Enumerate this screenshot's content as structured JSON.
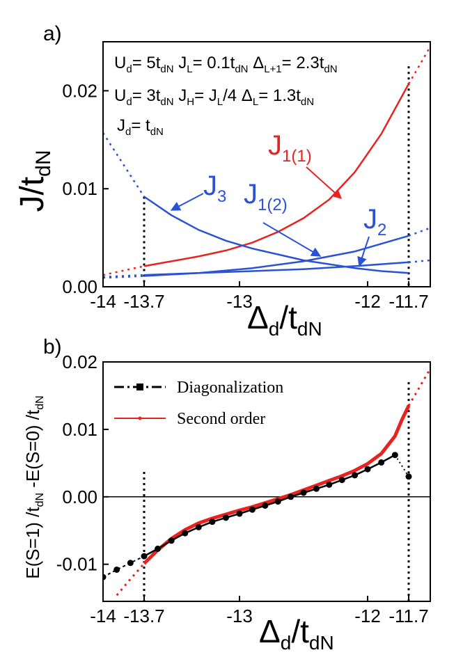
{
  "chart_data": [
    {
      "panel": "a)",
      "type": "line",
      "xlim": [
        -14,
        -11.6
      ],
      "ylim": [
        0.0,
        0.025
      ],
      "xticks": [
        "-14",
        "-13.7",
        "-13",
        "-12",
        "-11.7"
      ],
      "xtick_values": [
        -14,
        -13.7,
        -13,
        -12,
        -11.7
      ],
      "yticks": [
        "0.00",
        "0.01",
        "0.02"
      ],
      "ytick_values": [
        0.0,
        0.01,
        0.02
      ],
      "xlabel": {
        "main": "Δ",
        "sub1": "d",
        "slash": "/t",
        "sub2": "dN"
      },
      "ylabel": {
        "main": "J/t",
        "sub": "dN"
      },
      "annotation_lines": [
        [
          "U",
          "d",
          "= 5t",
          "dN",
          "  J",
          "L",
          "= 0.1t",
          "dN",
          "  Δ",
          "L+1",
          "= 2.3t",
          "dN"
        ],
        [
          "U",
          "d",
          "= 3t",
          "dN",
          "  J",
          "H",
          "= J",
          "L",
          "/4   Δ",
          "L",
          "= 1.3t",
          "dN"
        ],
        [
          "J",
          "d",
          "= t",
          "dN"
        ]
      ],
      "vlines": [
        -13.7,
        -11.7
      ],
      "labels": {
        "J1_1": {
          "main": "J",
          "sub": "1(1)",
          "color": "#e8231f"
        },
        "J1_2": {
          "main": "J",
          "sub": "1(2)",
          "color": "#2a52d6"
        },
        "J3": {
          "main": "J",
          "sub": "3",
          "color": "#2a52d6"
        },
        "J2": {
          "main": "J",
          "sub": "2",
          "color": "#2a52d6"
        }
      },
      "series": [
        {
          "key": "J1_1",
          "color": "#e8231f",
          "valid_range": [
            -13.7,
            -11.7
          ],
          "x": [
            -14.0,
            -13.7,
            -13.5,
            -13.3,
            -13.1,
            -12.9,
            -12.7,
            -12.5,
            -12.3,
            -12.1,
            -11.9,
            -11.7,
            -11.6
          ],
          "y": [
            0.0012,
            0.0021,
            0.0026,
            0.0031,
            0.0037,
            0.0045,
            0.0056,
            0.007,
            0.0089,
            0.0117,
            0.0156,
            0.0207,
            0.0245
          ]
        },
        {
          "key": "J3",
          "color": "#2a52d6",
          "valid_range": [
            -13.7,
            -11.7
          ],
          "x": [
            -14.0,
            -13.7,
            -13.5,
            -13.3,
            -13.1,
            -12.9,
            -12.7,
            -12.5,
            -12.3,
            -12.1,
            -11.9,
            -11.7
          ],
          "y": [
            0.0157,
            0.0092,
            0.0073,
            0.0058,
            0.0047,
            0.0039,
            0.0033,
            0.0027,
            0.0023,
            0.0019,
            0.0016,
            0.0014
          ]
        },
        {
          "key": "J1_2",
          "color": "#2a52d6",
          "valid_range": [
            -13.7,
            -11.7
          ],
          "x": [
            -14.0,
            -13.7,
            -13.3,
            -12.9,
            -12.5,
            -12.1,
            -11.7,
            -11.6
          ],
          "y": [
            0.0009,
            0.0011,
            0.0014,
            0.0019,
            0.0026,
            0.0036,
            0.0052,
            0.006
          ]
        },
        {
          "key": "J2",
          "color": "#2a52d6",
          "valid_range": [
            -13.7,
            -11.7
          ],
          "x": [
            -14.0,
            -13.7,
            -13.3,
            -12.9,
            -12.5,
            -12.1,
            -11.7,
            -11.6
          ],
          "y": [
            0.001,
            0.0012,
            0.0014,
            0.0016,
            0.0018,
            0.0021,
            0.0025,
            0.0027
          ]
        }
      ]
    },
    {
      "panel": "b)",
      "type": "line",
      "xlim": [
        -14,
        -11.6
      ],
      "ylim": [
        -0.0155,
        0.02
      ],
      "xticks": [
        "-14",
        "-13.7",
        "-13",
        "-12",
        "-11.7"
      ],
      "xtick_values": [
        -14,
        -13.7,
        -13,
        -12,
        -11.7
      ],
      "yticks": [
        "-0.01",
        "0.00",
        "0.01",
        "0.02"
      ],
      "ytick_values": [
        -0.01,
        0.0,
        0.01,
        0.02
      ],
      "xlabel": {
        "main": "Δ",
        "sub1": "d",
        "slash": "/t",
        "sub2": "dN"
      },
      "ylabel_parts": [
        "E(S=1) /t",
        "dN",
        " -E(S=0) /t",
        "dN"
      ],
      "vlines": [
        -13.7,
        -11.7
      ],
      "legend": {
        "position": "top-left",
        "entries": [
          {
            "label": "Diagonalization",
            "color": "#000000"
          },
          {
            "label": "Second order",
            "color": "#e8231f"
          }
        ]
      },
      "series": [
        {
          "name": "Diagonalization",
          "color": "#000000",
          "marker": "circle",
          "x": [
            -14.0,
            -13.9,
            -13.8,
            -13.7,
            -13.6,
            -13.5,
            -13.4,
            -13.3,
            -13.2,
            -13.1,
            -13.0,
            -12.9,
            -12.8,
            -12.7,
            -12.6,
            -12.5,
            -12.4,
            -12.3,
            -12.2,
            -12.1,
            -12.0,
            -11.9,
            -11.8,
            -11.7
          ],
          "y": [
            -0.0119,
            -0.0108,
            -0.0098,
            -0.0088,
            -0.0077,
            -0.0065,
            -0.0054,
            -0.0045,
            -0.0037,
            -0.0031,
            -0.0025,
            -0.0019,
            -0.0013,
            -0.0007,
            0.0,
            0.0006,
            0.0012,
            0.0018,
            0.0025,
            0.0032,
            0.0041,
            0.0051,
            0.0062,
            0.003
          ]
        },
        {
          "name": "Second order",
          "color": "#e8231f",
          "x": [
            -13.9,
            -13.8,
            -13.7,
            -13.6,
            -13.5,
            -13.4,
            -13.3,
            -13.2,
            -13.1,
            -13.0,
            -12.9,
            -12.8,
            -12.7,
            -12.6,
            -12.5,
            -12.4,
            -12.3,
            -12.2,
            -12.1,
            -12.0,
            -11.9,
            -11.8,
            -11.75,
            -11.7,
            -11.6
          ],
          "y": [
            -0.0146,
            -0.0122,
            -0.0099,
            -0.0079,
            -0.0062,
            -0.0049,
            -0.0039,
            -0.0032,
            -0.0026,
            -0.002,
            -0.0015,
            -0.0009,
            -0.0003,
            0.0003,
            0.001,
            0.0017,
            0.0024,
            0.0031,
            0.0039,
            0.0049,
            0.0064,
            0.009,
            0.0114,
            0.0135,
            0.019
          ]
        }
      ]
    }
  ]
}
